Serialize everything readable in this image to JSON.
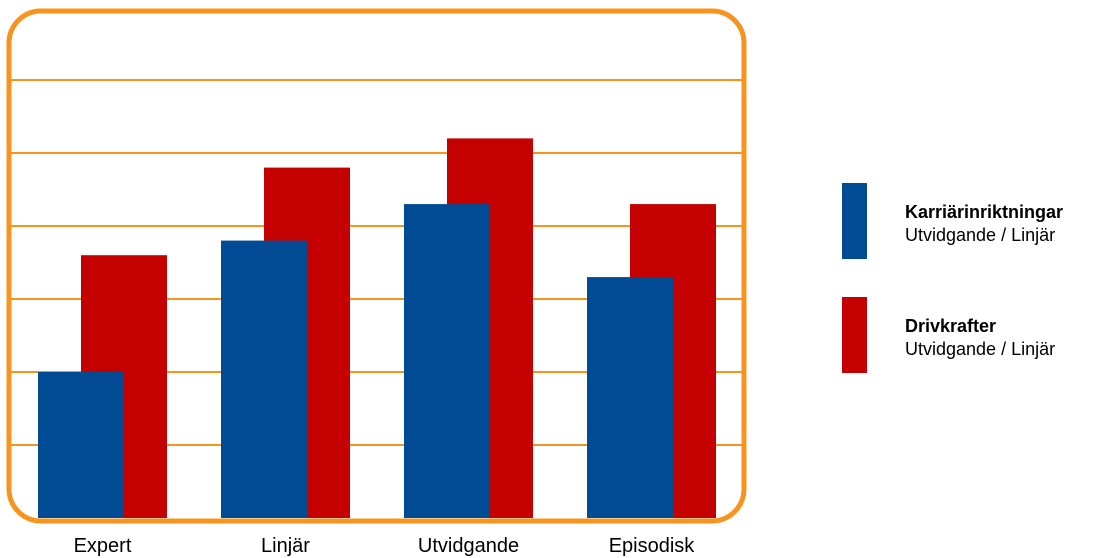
{
  "chart_data": {
    "type": "bar",
    "title": "",
    "xlabel": "",
    "ylabel": "",
    "categories": [
      "Expert",
      "Linjär",
      "Utvidgande",
      "Episodisk"
    ],
    "series": [
      {
        "name": "Karriärinriktningar",
        "subtitle": "Utvidgande / Linjär",
        "color": "#004b93",
        "values": [
          2.0,
          3.8,
          4.3,
          3.3
        ]
      },
      {
        "name": "Drivkrafter",
        "subtitle": "Utvidgande / Linjär",
        "color": "#c40000",
        "values": [
          3.6,
          4.8,
          5.2,
          4.3
        ]
      }
    ],
    "ylim": [
      0,
      6
    ],
    "gridlines": 6,
    "grid": true,
    "grid_color": "#f7941d",
    "frame_color": "#f7941d",
    "legend_position": "right",
    "y_tick_labels_shown": false
  }
}
